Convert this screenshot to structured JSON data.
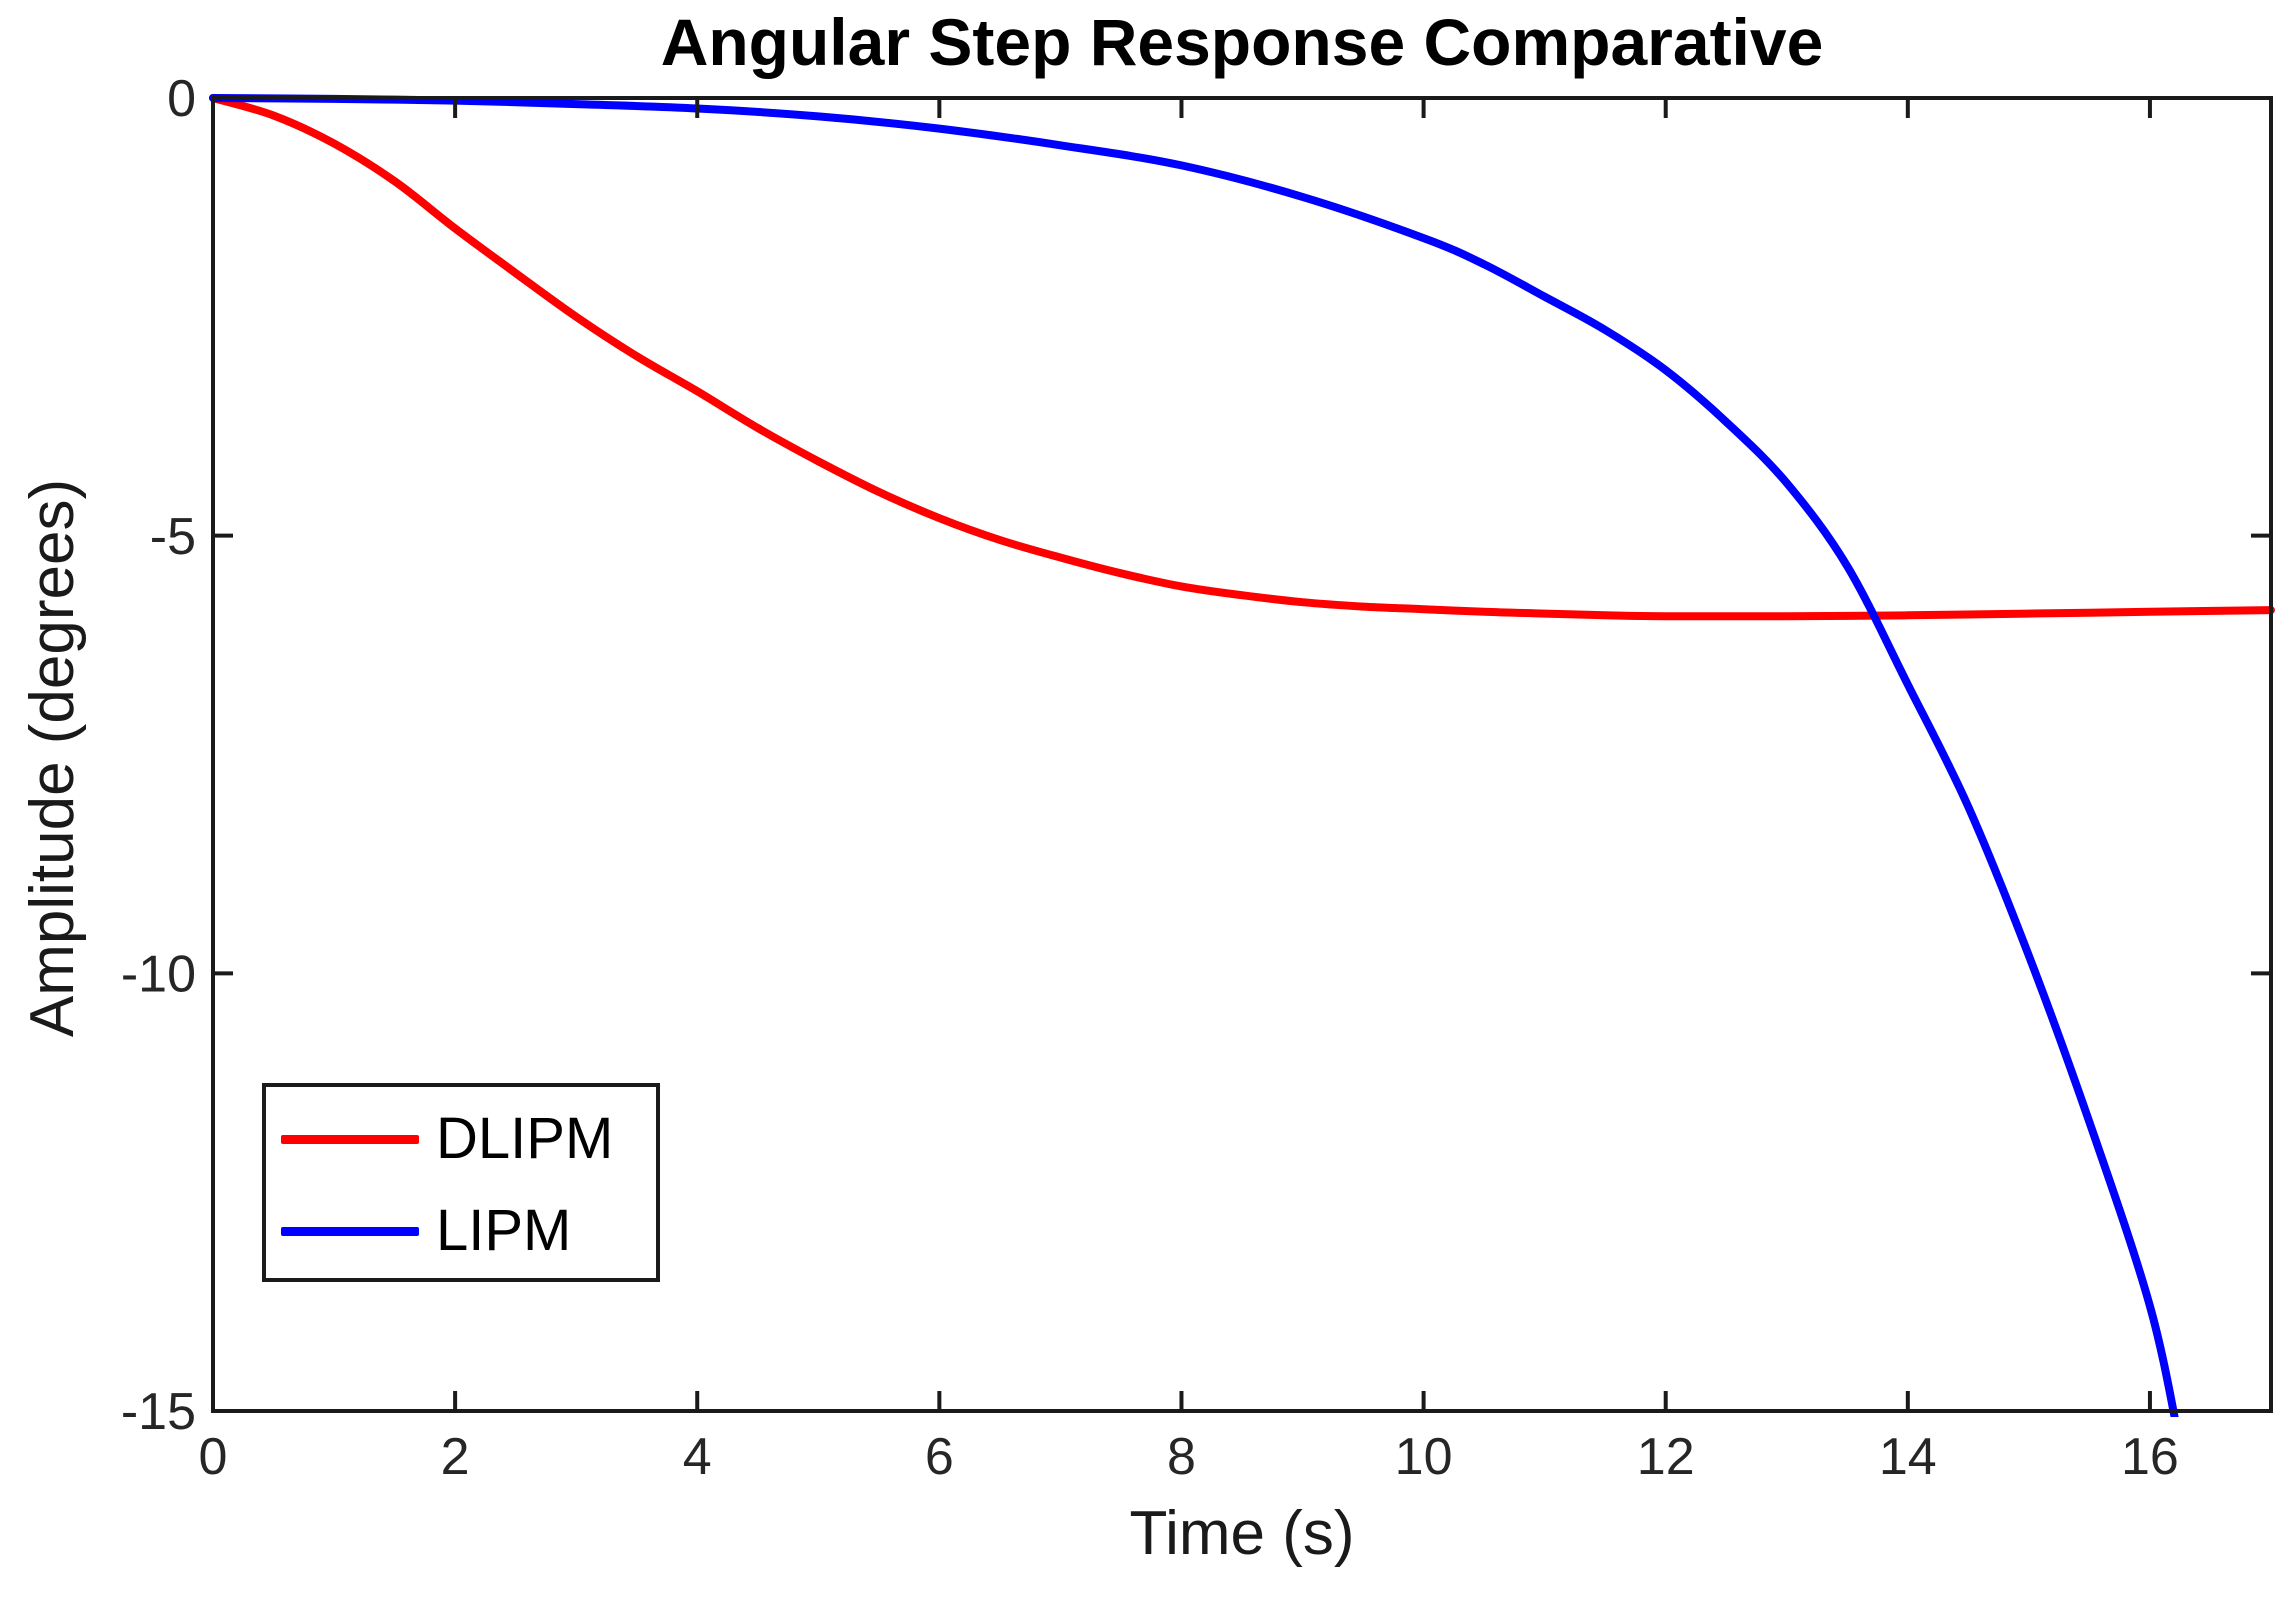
{
  "chart_data": {
    "type": "line",
    "title": "Angular Step Response Comparative",
    "xlabel": "Time (s)",
    "ylabel": "Amplitude (degrees)",
    "xlim": [
      0,
      17
    ],
    "ylim": [
      -15,
      0
    ],
    "xticks": {
      "values": [
        0,
        2,
        4,
        6,
        8,
        10,
        12,
        14,
        16
      ],
      "labels": [
        "0",
        "2",
        "4",
        "6",
        "8",
        "10",
        "12",
        "14",
        "16"
      ]
    },
    "yticks": {
      "values": [
        0,
        -5,
        -10,
        -15
      ],
      "labels": [
        "0",
        "-5",
        "-10",
        "-15"
      ]
    },
    "grid": false,
    "axis_color": "#1a1a1a",
    "legend": {
      "position": "southwest",
      "entries": [
        {
          "label": "DLIPM"
        },
        {
          "label": "LIPM"
        }
      ]
    },
    "series": [
      {
        "name": "DLIPM",
        "color": "#ff0000",
        "x": [
          0,
          0.5,
          1,
          1.5,
          2,
          2.5,
          3,
          3.5,
          4,
          4.5,
          5,
          5.5,
          6,
          6.5,
          7,
          7.5,
          8,
          8.5,
          9,
          9.5,
          10,
          10.5,
          11,
          11.5,
          12,
          13,
          14,
          15,
          16,
          17
        ],
        "y": [
          0,
          -0.2,
          -0.52,
          -0.95,
          -1.49,
          -2.0,
          -2.5,
          -2.95,
          -3.35,
          -3.77,
          -4.15,
          -4.5,
          -4.8,
          -5.05,
          -5.25,
          -5.43,
          -5.58,
          -5.68,
          -5.76,
          -5.81,
          -5.84,
          -5.87,
          -5.89,
          -5.91,
          -5.92,
          -5.92,
          -5.91,
          -5.89,
          -5.87,
          -5.85
        ]
      },
      {
        "name": "LIPM",
        "color": "#0000ff",
        "x": [
          0,
          1,
          2,
          3,
          4,
          5,
          6,
          7,
          8,
          9,
          10,
          10.5,
          11,
          11.5,
          12,
          12.5,
          13,
          13.5,
          14,
          14.5,
          15,
          15.5,
          16,
          16.25
        ],
        "y": [
          0,
          -0.01,
          -0.03,
          -0.07,
          -0.12,
          -0.21,
          -0.35,
          -0.54,
          -0.77,
          -1.13,
          -1.6,
          -1.9,
          -2.27,
          -2.65,
          -3.11,
          -3.7,
          -4.4,
          -5.35,
          -6.7,
          -8.1,
          -9.8,
          -11.7,
          -13.8,
          -15.4
        ]
      }
    ]
  }
}
